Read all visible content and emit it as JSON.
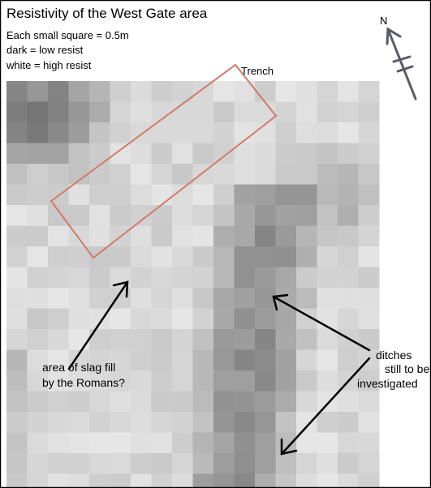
{
  "header": {
    "title": "Resistivity of the West Gate area",
    "legend": [
      "Each small square = 0.5m",
      "dark = low resist",
      "white = high resist"
    ]
  },
  "north": "N",
  "annotations": {
    "trench": "Trench",
    "slag": [
      "area of slag fill",
      "by the Romans?"
    ],
    "ditches": [
      "ditches",
      "still to be",
      "investigated"
    ]
  }
}
